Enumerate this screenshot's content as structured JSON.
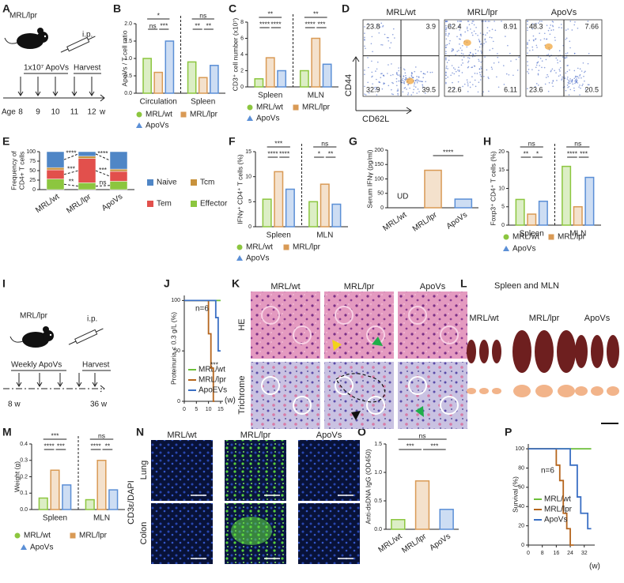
{
  "panels": {
    "A": {
      "letter": "A",
      "strain": "MRL/lpr",
      "route": "i.p.",
      "treatment": "1x10⁷ ApoVs",
      "harvest": "Harvest",
      "age_label": "Age",
      "ages": [
        8,
        9,
        10,
        11,
        12
      ],
      "unit": "w"
    },
    "B": {
      "letter": "B",
      "type": "bar_grouped",
      "ylabel": "ApoVs / T cell ratio",
      "categories": [
        "Circulation",
        "Spleen"
      ],
      "series": [
        {
          "name": "MRL/wt",
          "color": "#8cc63f",
          "values": [
            1.0,
            0.9
          ]
        },
        {
          "name": "MRL/lpr",
          "color": "#d99a55",
          "values": [
            0.6,
            0.45
          ]
        },
        {
          "name": "ApoVs",
          "color": "#5b8fd6",
          "values": [
            1.5,
            0.8
          ]
        }
      ],
      "ylim": [
        0,
        2
      ],
      "yticks": [
        {
          "value": 0,
          "label": "0.0"
        },
        {
          "value": 0.5,
          "label": "0.5"
        },
        {
          "value": 1,
          "label": "1.0"
        },
        {
          "value": 1.5,
          "label": "1.5"
        },
        {
          "value": 2,
          "label": "2.0"
        }
      ],
      "significance": [
        [
          "*",
          "ns",
          "***"
        ],
        [
          "ns",
          "**",
          "**"
        ]
      ]
    },
    "C": {
      "letter": "C",
      "type": "bar_grouped",
      "ylabel": "CD3⁺ cell number (x10⁷)",
      "categories": [
        "Spleen",
        "MLN"
      ],
      "series": [
        {
          "name": "MRL/wt",
          "color": "#8cc63f",
          "values": [
            1.0,
            2.0
          ]
        },
        {
          "name": "MRL/lpr",
          "color": "#d99a55",
          "values": [
            3.6,
            6.0
          ]
        },
        {
          "name": "ApoVs",
          "color": "#5b8fd6",
          "values": [
            2.0,
            2.8
          ]
        }
      ],
      "ylim": [
        0,
        8
      ],
      "yticks": [
        0,
        2,
        4,
        6,
        8
      ],
      "significance": [
        [
          "**",
          "****",
          "****"
        ],
        [
          "**",
          "****",
          "***"
        ]
      ]
    },
    "D": {
      "letter": "D",
      "type": "flow",
      "ylabel": "CD44",
      "xlabel": "CD62L",
      "plots": [
        {
          "title": "MRL/wt",
          "quadrants": [
            23.8,
            3.9,
            32.9,
            39.5
          ]
        },
        {
          "title": "MRL/lpr",
          "quadrants": [
            62.4,
            8.91,
            22.6,
            6.11
          ]
        },
        {
          "title": "ApoVs",
          "quadrants": [
            48.3,
            7.66,
            23.6,
            20.5
          ]
        }
      ]
    },
    "E": {
      "letter": "E",
      "type": "bar_stacked",
      "ylabel": [
        "Frequency of",
        "CD4+ T cells"
      ],
      "categories": [
        "MRL/wt",
        "MRL/lpr",
        "ApoVs"
      ],
      "series": [
        {
          "name": "Naive",
          "color": "#4f86c6",
          "values": [
            42,
            12,
            46
          ]
        },
        {
          "name": "Tcm",
          "color": "#c8923c",
          "values": [
            6,
            6,
            6
          ]
        },
        {
          "name": "Tem",
          "color": "#e2504c",
          "values": [
            24,
            64,
            26
          ]
        },
        {
          "name": "Effector",
          "color": "#8cc63f",
          "values": [
            28,
            18,
            22
          ]
        }
      ],
      "ylim": [
        0,
        100
      ],
      "yticks": [
        0,
        25,
        50,
        75,
        100
      ],
      "significance": [
        "****",
        "***",
        "**",
        "****",
        "***",
        "ns"
      ]
    },
    "F": {
      "letter": "F",
      "type": "bar_grouped",
      "ylabel": "IFNγ⁺ CD4⁺ T cells (%)",
      "categories": [
        "Spleen",
        "MLN"
      ],
      "series": [
        {
          "name": "MRL/wt",
          "color": "#8cc63f",
          "values": [
            5.5,
            5.0
          ]
        },
        {
          "name": "MRL/lpr",
          "color": "#d99a55",
          "values": [
            11,
            8.5
          ]
        },
        {
          "name": "ApoVs",
          "color": "#5b8fd6",
          "values": [
            7.5,
            4.5
          ]
        }
      ],
      "ylim": [
        0,
        15
      ],
      "yticks": [
        0,
        5,
        10,
        15
      ],
      "significance": [
        [
          "***",
          "****",
          "****"
        ],
        [
          "ns",
          "*",
          "**"
        ]
      ]
    },
    "G": {
      "letter": "G",
      "type": "bar",
      "ylabel": "Serum IFNγ (pg/ml)",
      "categories": [
        "MRL/wt",
        "MRL/lpr",
        "ApoVs"
      ],
      "colors": [
        "#8cc63f",
        "#d99a55",
        "#5b8fd6"
      ],
      "values": [
        null,
        130,
        30
      ],
      "annotation": "UD",
      "ylim": [
        0,
        200
      ],
      "yticks": [
        0,
        50,
        100,
        150,
        200
      ],
      "significance": [
        "****"
      ]
    },
    "H": {
      "letter": "H",
      "type": "bar_grouped",
      "ylabel": "Foxp3⁺ CD4⁺ T cells (%)",
      "categories": [
        "Spleen",
        "MLN"
      ],
      "series": [
        {
          "name": "MRL/wt",
          "color": "#8cc63f",
          "values": [
            7,
            16
          ]
        },
        {
          "name": "MRL/lpr",
          "color": "#d99a55",
          "values": [
            3,
            5
          ]
        },
        {
          "name": "ApoVs",
          "color": "#5b8fd6",
          "values": [
            6.5,
            13
          ]
        }
      ],
      "ylim": [
        0,
        20
      ],
      "yticks": [
        0,
        5,
        10,
        15,
        20
      ],
      "significance": [
        [
          "ns",
          "**",
          "*"
        ],
        [
          "ns",
          "****",
          "***"
        ]
      ]
    },
    "I": {
      "letter": "I",
      "strain": "MRL/lpr",
      "route": "i.p.",
      "treatment": "Weekly ApoVs",
      "harvest": "Harvest",
      "start": "8 w",
      "end": "36 w"
    },
    "J": {
      "letter": "J",
      "type": "step",
      "ylabel": "Proteinuria < 0.3 g/L (%)",
      "xlabel": "(w)",
      "n_label": "n=6",
      "significance_label": "***",
      "xlim": [
        0,
        16
      ],
      "xticks": [
        0,
        5,
        10,
        15
      ],
      "ylim": [
        0,
        105
      ],
      "yticks": [
        0,
        50,
        100
      ],
      "series": [
        {
          "name": "MRL/wt",
          "color": "#6cbf3a",
          "x": [
            0,
            15
          ],
          "values": [
            100,
            100
          ]
        },
        {
          "name": "MRL/lpr",
          "color": "#b5651d",
          "x": [
            0,
            10,
            10,
            11,
            11,
            12,
            12,
            12.5
          ],
          "values": [
            100,
            100,
            67,
            67,
            33,
            33,
            0,
            0
          ]
        },
        {
          "name": "ApoEVs",
          "color": "#3a6fc4",
          "x": [
            0,
            13,
            13,
            14,
            14,
            15
          ],
          "values": [
            100,
            100,
            83,
            83,
            50,
            50
          ]
        }
      ]
    },
    "K": {
      "letter": "K",
      "columns": [
        "MRL/wt",
        "MRL/lpr",
        "ApoVs"
      ],
      "rows": [
        "HE",
        "Trichrome"
      ]
    },
    "L": {
      "letter": "L",
      "title": "Spleen and MLN",
      "columns": [
        "MRL/wt",
        "MRL/lpr",
        "ApoVs"
      ]
    },
    "M": {
      "letter": "M",
      "type": "bar_grouped",
      "ylabel": "Weight (g)",
      "categories": [
        "Spleen",
        "MLN"
      ],
      "series": [
        {
          "name": "MRL/wt",
          "color": "#8cc63f",
          "values": [
            0.07,
            0.06
          ]
        },
        {
          "name": "MRL/lpr",
          "color": "#d99a55",
          "values": [
            0.24,
            0.3
          ]
        },
        {
          "name": "ApoVs",
          "color": "#5b8fd6",
          "values": [
            0.15,
            0.12
          ]
        }
      ],
      "ylim": [
        0,
        0.4
      ],
      "yticks": [
        {
          "value": 0,
          "label": "0.0"
        },
        {
          "value": 0.1,
          "label": "0.1"
        },
        {
          "value": 0.2,
          "label": "0.2"
        },
        {
          "value": 0.3,
          "label": "0.3"
        },
        {
          "value": 0.4,
          "label": "0.4"
        }
      ],
      "significance": [
        [
          "***",
          "****",
          "***"
        ],
        [
          "ns",
          "****",
          "**"
        ]
      ]
    },
    "N": {
      "letter": "N",
      "columns": [
        "MRL/wt",
        "MRL/lpr",
        "ApoVs"
      ],
      "rows": [
        "Lung",
        "Colon"
      ],
      "stain": "CD3ε/DAPI"
    },
    "O": {
      "letter": "O",
      "type": "bar",
      "ylabel": "Anti-dsDNA IgG (OD450)",
      "categories": [
        "MRL/wt",
        "MRL/lpr",
        "ApoVs"
      ],
      "colors": [
        "#8cc63f",
        "#d99a55",
        "#5b8fd6"
      ],
      "values": [
        0.17,
        0.85,
        0.35
      ],
      "ylim": [
        0,
        1.5
      ],
      "yticks": [
        {
          "value": 0,
          "label": "0.0"
        },
        {
          "value": 0.5,
          "label": "0.5"
        },
        {
          "value": 1,
          "label": "1.0"
        },
        {
          "value": 1.5,
          "label": "1.5"
        }
      ],
      "significance": [
        "ns",
        "***",
        "***"
      ]
    },
    "P": {
      "letter": "P",
      "type": "step",
      "ylabel": "Survival (%)",
      "xlabel": "(w)",
      "n_label": "n=6",
      "xlim": [
        0,
        38
      ],
      "xticks": [
        0,
        8,
        16,
        24,
        32
      ],
      "ylim": [
        0,
        105
      ],
      "yticks": [
        0,
        20,
        40,
        60,
        80,
        100
      ],
      "series": [
        {
          "name": "MRL/wt",
          "color": "#6cbf3a",
          "x": [
            0,
            36
          ],
          "values": [
            100,
            100
          ]
        },
        {
          "name": "MRL/lpr",
          "color": "#b5651d",
          "x": [
            0,
            16,
            16,
            18,
            18,
            20,
            20,
            22,
            22,
            24,
            24,
            26
          ],
          "values": [
            100,
            100,
            83,
            83,
            67,
            67,
            33,
            33,
            17,
            17,
            0,
            0
          ]
        },
        {
          "name": "ApoVs",
          "color": "#3a6fc4",
          "x": [
            0,
            24,
            24,
            28,
            28,
            30,
            30,
            34,
            34,
            36
          ],
          "values": [
            100,
            100,
            83,
            83,
            50,
            50,
            33,
            33,
            17,
            17
          ]
        }
      ]
    }
  }
}
